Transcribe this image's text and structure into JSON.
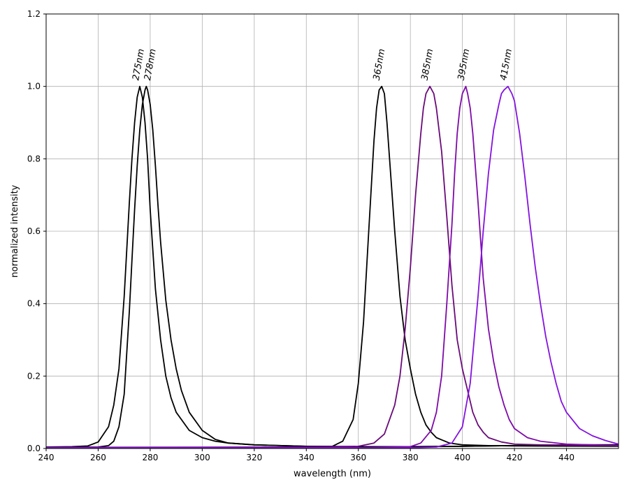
{
  "chart_data": {
    "type": "line",
    "title": "",
    "xlabel": "wavelength (nm)",
    "ylabel": "normalized intensity",
    "xlim": [
      240,
      460
    ],
    "ylim": [
      0,
      1.2
    ],
    "xticks": [
      240,
      260,
      280,
      300,
      320,
      340,
      360,
      380,
      400,
      420,
      440
    ],
    "yticks": [
      0.0,
      0.2,
      0.4,
      0.6,
      0.8,
      1.0,
      1.2
    ],
    "xtick_labels": [
      "240",
      "260",
      "280",
      "300",
      "320",
      "340",
      "360",
      "380",
      "400",
      "420",
      "440"
    ],
    "ytick_labels": [
      "0.0",
      "0.2",
      "0.4",
      "0.6",
      "0.8",
      "1.0",
      "1.2"
    ],
    "grid": true,
    "series": [
      {
        "name": "275nm",
        "label": "275nm",
        "color": "#000000",
        "peak": 276,
        "label_x": 275.5,
        "x": [
          240,
          250,
          256,
          260,
          264,
          266,
          268,
          270,
          271,
          272,
          273,
          274,
          275,
          276,
          277,
          278,
          279,
          280,
          281,
          282,
          284,
          286,
          288,
          290,
          295,
          300,
          305,
          310,
          320,
          340,
          360,
          380,
          400,
          420,
          440,
          460
        ],
        "y": [
          0.004,
          0.005,
          0.007,
          0.018,
          0.06,
          0.12,
          0.22,
          0.42,
          0.55,
          0.68,
          0.8,
          0.9,
          0.97,
          1.0,
          0.97,
          0.9,
          0.8,
          0.66,
          0.55,
          0.44,
          0.3,
          0.2,
          0.14,
          0.1,
          0.05,
          0.03,
          0.02,
          0.015,
          0.01,
          0.006,
          0.005,
          0.005,
          0.006,
          0.008,
          0.01,
          0.01
        ]
      },
      {
        "name": "278nm",
        "label": "278nm",
        "color": "#000000",
        "peak": 278.5,
        "label_x": 280,
        "x": [
          240,
          260,
          264,
          266,
          268,
          270,
          272,
          273,
          274,
          275,
          276,
          277,
          278,
          278.5,
          279,
          280,
          281,
          282,
          283,
          284,
          286,
          288,
          290,
          292,
          295,
          300,
          305,
          310,
          320,
          340,
          360,
          380,
          400,
          420,
          440,
          460
        ],
        "y": [
          0.003,
          0.004,
          0.008,
          0.02,
          0.06,
          0.15,
          0.38,
          0.52,
          0.66,
          0.78,
          0.88,
          0.95,
          0.99,
          1.0,
          0.99,
          0.95,
          0.88,
          0.78,
          0.67,
          0.57,
          0.41,
          0.3,
          0.22,
          0.16,
          0.1,
          0.05,
          0.025,
          0.015,
          0.01,
          0.006,
          0.005,
          0.005,
          0.006,
          0.008,
          0.01,
          0.01
        ]
      },
      {
        "name": "365nm",
        "label": "365nm",
        "color": "#000000",
        "peak": 369,
        "label_x": 368,
        "x": [
          240,
          300,
          340,
          350,
          354,
          358,
          360,
          362,
          364,
          366,
          367,
          368,
          369,
          370,
          371,
          372,
          374,
          376,
          378,
          380,
          382,
          384,
          386,
          388,
          390,
          395,
          400,
          410,
          420,
          460
        ],
        "y": [
          0.003,
          0.003,
          0.004,
          0.006,
          0.02,
          0.08,
          0.18,
          0.35,
          0.6,
          0.85,
          0.94,
          0.99,
          1.0,
          0.98,
          0.9,
          0.8,
          0.6,
          0.42,
          0.3,
          0.22,
          0.15,
          0.1,
          0.065,
          0.045,
          0.03,
          0.015,
          0.01,
          0.008,
          0.007,
          0.006
        ]
      },
      {
        "name": "385nm",
        "label": "385nm",
        "color": "#6a0a7a",
        "peak": 387.5,
        "label_x": 386.5,
        "x": [
          240,
          340,
          360,
          366,
          370,
          374,
          376,
          378,
          380,
          382,
          384,
          385,
          386,
          387.5,
          389,
          390,
          392,
          394,
          396,
          398,
          400,
          402,
          404,
          406,
          408,
          410,
          415,
          420,
          430,
          460
        ],
        "y": [
          0.003,
          0.004,
          0.006,
          0.015,
          0.04,
          0.12,
          0.2,
          0.33,
          0.5,
          0.7,
          0.87,
          0.94,
          0.98,
          1.0,
          0.98,
          0.94,
          0.82,
          0.64,
          0.45,
          0.3,
          0.22,
          0.16,
          0.1,
          0.065,
          0.045,
          0.03,
          0.018,
          0.012,
          0.01,
          0.008
        ]
      },
      {
        "name": "395nm",
        "label": "395nm",
        "color": "#7e0aa8",
        "peak": 401.3,
        "label_x": 400.5,
        "x": [
          240,
          360,
          380,
          384,
          388,
          390,
          392,
          394,
          396,
          397,
          398,
          399,
          400,
          401.3,
          402,
          403,
          404,
          406,
          408,
          410,
          412,
          414,
          416,
          418,
          420,
          425,
          430,
          440,
          460
        ],
        "y": [
          0.002,
          0.002,
          0.005,
          0.015,
          0.05,
          0.1,
          0.2,
          0.4,
          0.62,
          0.76,
          0.87,
          0.94,
          0.98,
          1.0,
          0.98,
          0.94,
          0.87,
          0.68,
          0.47,
          0.33,
          0.24,
          0.17,
          0.12,
          0.08,
          0.055,
          0.03,
          0.02,
          0.012,
          0.008
        ]
      },
      {
        "name": "415nm",
        "label": "415nm",
        "color": "#8412e0",
        "peak": 417.5,
        "label_x": 416.8,
        "x": [
          240,
          380,
          390,
          396,
          400,
          403,
          406,
          408,
          410,
          412,
          414,
          415,
          416,
          417.5,
          419,
          420,
          422,
          424,
          426,
          428,
          430,
          432,
          434,
          436,
          438,
          440,
          445,
          450,
          455,
          460
        ],
        "y": [
          0.002,
          0.002,
          0.004,
          0.015,
          0.06,
          0.18,
          0.42,
          0.6,
          0.76,
          0.88,
          0.95,
          0.98,
          0.99,
          1.0,
          0.98,
          0.96,
          0.87,
          0.75,
          0.62,
          0.5,
          0.4,
          0.31,
          0.24,
          0.18,
          0.13,
          0.1,
          0.055,
          0.035,
          0.022,
          0.012
        ]
      }
    ]
  }
}
